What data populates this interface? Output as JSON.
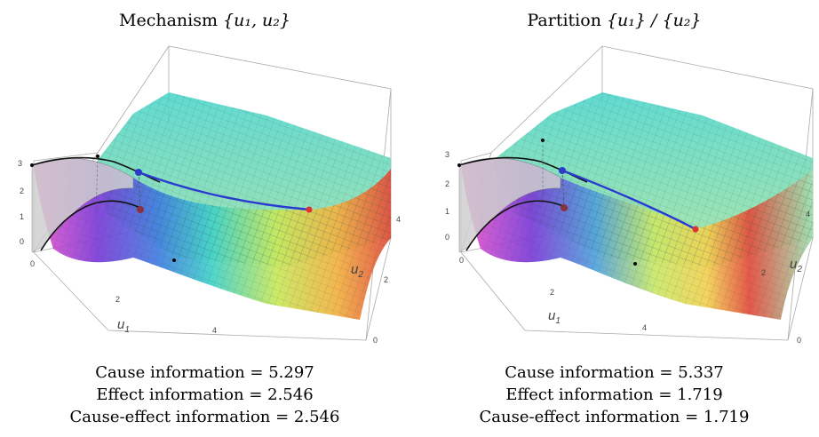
{
  "panels": [
    {
      "title_text": "Mechanism ",
      "title_math": "{u₁, u₂}",
      "axis_x_label": "u",
      "axis_x_sub": "1",
      "axis_y_label": "u",
      "axis_y_sub": "2",
      "z_ticks": [
        "0",
        "1",
        "2",
        "3"
      ],
      "x_ticks": [
        "0",
        "2",
        "4"
      ],
      "y_ticks": [
        "0",
        "2",
        "4"
      ],
      "captions": [
        "Cause information = 5.297",
        "Effect information = 2.546",
        "Cause-effect information = 2.546"
      ]
    },
    {
      "title_text": "Partition ",
      "title_math": "{u₁} / {u₂}",
      "axis_x_label": "u",
      "axis_x_sub": "1",
      "axis_y_label": "u",
      "axis_y_sub": "2",
      "z_ticks": [
        "0",
        "1",
        "2",
        "3"
      ],
      "x_ticks": [
        "0",
        "2",
        "4"
      ],
      "y_ticks": [
        "0",
        "2",
        "4"
      ],
      "captions": [
        "Cause information = 5.337",
        "Effect information = 1.719",
        "Cause-effect information = 1.719"
      ]
    }
  ]
}
